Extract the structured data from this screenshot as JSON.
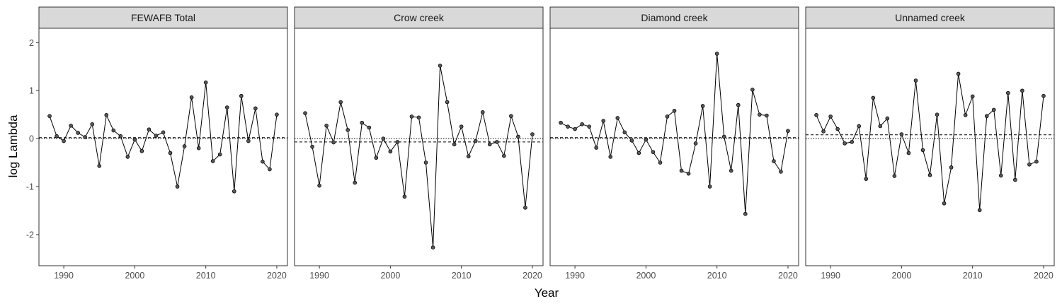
{
  "chart_data": {
    "type": "line",
    "xlabel": "Year",
    "ylabel": "log Lambda",
    "xlim": [
      1986.5,
      2021.5
    ],
    "ylim": [
      -2.65,
      2.3
    ],
    "x_ticks": [
      1990,
      2000,
      2010,
      2020
    ],
    "y_ticks": [
      -2,
      -1,
      0,
      1,
      2
    ],
    "grid": false,
    "legend": "none",
    "reference_lines": {
      "dotted": 0
    },
    "x": [
      1988,
      1989,
      1990,
      1991,
      1992,
      1993,
      1994,
      1995,
      1996,
      1997,
      1998,
      1999,
      2000,
      2001,
      2002,
      2003,
      2004,
      2005,
      2006,
      2007,
      2008,
      2009,
      2010,
      2011,
      2012,
      2013,
      2014,
      2015,
      2016,
      2017,
      2018,
      2019,
      2020
    ],
    "panels": [
      {
        "title": "FEWAFB Total",
        "mean": 0.02,
        "values": [
          0.47,
          0.05,
          -0.05,
          0.27,
          0.12,
          0.03,
          0.3,
          -0.57,
          0.49,
          0.17,
          0.05,
          -0.38,
          -0.02,
          -0.26,
          0.19,
          0.06,
          0.13,
          -0.3,
          -1.0,
          -0.16,
          0.86,
          -0.2,
          1.17,
          -0.47,
          -0.33,
          0.65,
          -1.1,
          0.89,
          -0.05,
          0.63,
          -0.48,
          -0.64,
          0.5
        ]
      },
      {
        "title": "Crow creek",
        "mean": -0.07,
        "values": [
          0.53,
          -0.17,
          -0.98,
          0.27,
          -0.08,
          0.76,
          0.18,
          -0.92,
          0.33,
          0.23,
          -0.4,
          0.0,
          -0.27,
          -0.07,
          -1.21,
          0.46,
          0.44,
          -0.5,
          -2.27,
          1.52,
          0.76,
          -0.12,
          0.25,
          -0.37,
          -0.05,
          0.55,
          -0.12,
          -0.07,
          -0.36,
          0.47,
          0.04,
          -1.44,
          0.09
        ]
      },
      {
        "title": "Diamond creek",
        "mean": 0.02,
        "values": [
          0.33,
          0.25,
          0.2,
          0.3,
          0.25,
          -0.19,
          0.37,
          -0.38,
          0.43,
          0.13,
          -0.04,
          -0.3,
          -0.02,
          -0.28,
          -0.5,
          0.46,
          0.58,
          -0.67,
          -0.73,
          -0.1,
          0.68,
          -1.0,
          1.77,
          0.04,
          -0.67,
          0.7,
          -1.57,
          1.02,
          0.5,
          0.48,
          -0.47,
          -0.69,
          0.16
        ]
      },
      {
        "title": "Unnamed creek",
        "mean": 0.08,
        "values": [
          0.49,
          0.15,
          0.46,
          0.2,
          -0.1,
          -0.07,
          0.26,
          -0.84,
          0.85,
          0.26,
          0.42,
          -0.78,
          0.09,
          -0.3,
          1.21,
          -0.24,
          -0.76,
          0.5,
          -1.35,
          -0.6,
          1.35,
          0.49,
          0.88,
          -1.49,
          0.47,
          0.6,
          -0.77,
          0.95,
          -0.86,
          1.0,
          -0.54,
          -0.48,
          0.89
        ]
      }
    ]
  }
}
